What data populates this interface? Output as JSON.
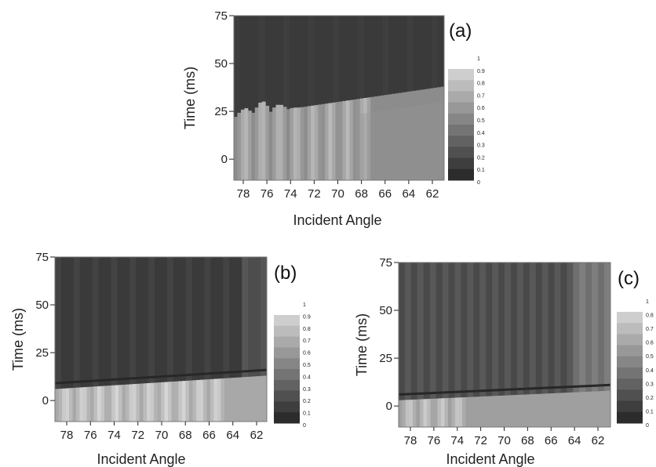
{
  "chart_data": [
    {
      "type": "heatmap",
      "panel_label": "(a)",
      "xlabel": "Incident Angle",
      "ylabel": "Time (ms)",
      "x_ticks": [
        "78",
        "76",
        "74",
        "72",
        "70",
        "68",
        "66",
        "64",
        "62"
      ],
      "x_range": [
        79,
        60.5
      ],
      "y_ticks": [
        "75",
        "50",
        "25",
        "0"
      ],
      "ylim": [
        -11,
        75
      ],
      "colorbar_ticks": [
        "1",
        "0.9",
        "0.8",
        "0.7",
        "0.6",
        "0.5",
        "0.4",
        "0.3",
        "0.2",
        "0.1",
        "0"
      ],
      "features": {
        "bright_band_top_ms_at_79": 22,
        "bright_band_top_ms_at_60.5": 38,
        "oscillation_peak_angles": [
          78,
          76.5,
          75,
          73.5,
          72,
          70.5,
          69,
          67.5
        ],
        "oscillation_peak_top_ms": [
          27,
          31,
          29,
          27,
          26,
          26,
          27,
          27
        ],
        "background_level": 0.12,
        "band_level": 0.55
      }
    },
    {
      "type": "heatmap",
      "panel_label": "(b)",
      "xlabel": "Incident Angle",
      "ylabel": "Time (ms)",
      "x_ticks": [
        "78",
        "76",
        "74",
        "72",
        "70",
        "68",
        "66",
        "64",
        "62"
      ],
      "x_range": [
        79.5,
        60.5
      ],
      "y_ticks": [
        "75",
        "50",
        "25",
        "0"
      ],
      "ylim": [
        -11,
        75
      ],
      "colorbar_ticks": [
        "1",
        "0.9",
        "0.8",
        "0.7",
        "0.6",
        "0.5",
        "0.4",
        "0.3",
        "0.2",
        "0.1",
        "0"
      ],
      "features": {
        "bright_band_top_ms_at_79.5": 6,
        "bright_band_top_ms_at_60.5": 13,
        "oscillation_peak_angles": [
          78.5,
          77,
          75.5,
          74,
          72.5,
          71,
          69.5,
          68,
          66.5,
          65
        ],
        "background_level": 0.12,
        "band_level": 0.7
      }
    },
    {
      "type": "heatmap",
      "panel_label": "(c)",
      "xlabel": "Incident Angle",
      "ylabel": "Time (ms)",
      "x_ticks": [
        "78",
        "76",
        "74",
        "72",
        "70",
        "68",
        "66",
        "64",
        "62"
      ],
      "x_range": [
        79.5,
        60
      ],
      "y_ticks": [
        "75",
        "50",
        "25",
        "0"
      ],
      "ylim": [
        -11,
        75
      ],
      "colorbar_ticks": [
        "1",
        "0.8",
        "0.7",
        "0.6",
        "0.5",
        "0.4",
        "0.3",
        "0.2",
        "0.1",
        "0"
      ],
      "features": {
        "bright_band_top_ms_at_79.5": 3,
        "bright_band_top_ms_at_60": 8,
        "oscillation_peak_angles": [
          78.5,
          77,
          75.5,
          74
        ],
        "background_level": 0.18,
        "band_level": 0.65
      }
    }
  ]
}
